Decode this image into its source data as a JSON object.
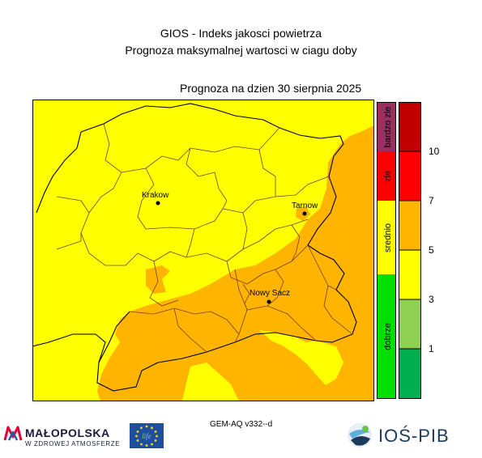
{
  "header": {
    "title": "GIOS - Indeks jakosci powietrza",
    "subtitle": "Prognoza maksymalnej wartosci w ciagu doby",
    "date_line": "Prognoza na dzien  30 sierpnia 2025"
  },
  "map": {
    "colors": {
      "yellow": "#ffff00",
      "orange": "#ffb400",
      "border": "#6e3a1e"
    },
    "cities": [
      {
        "name": "Krakow"
      },
      {
        "name": "Tarnow"
      },
      {
        "name": "Nowy Sacz"
      }
    ]
  },
  "category_bar": {
    "categories": [
      {
        "label": "bardzo zle",
        "color": "#9a3060"
      },
      {
        "label": "zle",
        "color": "#ff0000"
      },
      {
        "label": "srednio",
        "color": "#ffff00"
      },
      {
        "label": "dobrze",
        "color": "#00e000"
      }
    ]
  },
  "scale": {
    "bands": [
      {
        "color": "#c00000"
      },
      {
        "color": "#ff0000"
      },
      {
        "color": "#ffb400"
      },
      {
        "color": "#ffff00"
      },
      {
        "color": "#90d050"
      },
      {
        "color": "#00b050"
      }
    ],
    "ticks": [
      "10",
      "7",
      "5",
      "3",
      "1"
    ]
  },
  "footer": {
    "model": "GEM-AQ v332--d",
    "malopolska_name": "MAŁOPOLSKA",
    "malopolska_tagline": "W ZDROWEJ ATMOSFERZE",
    "eu_flag_text": "life",
    "ios_name": "IOŚ-PIB"
  }
}
